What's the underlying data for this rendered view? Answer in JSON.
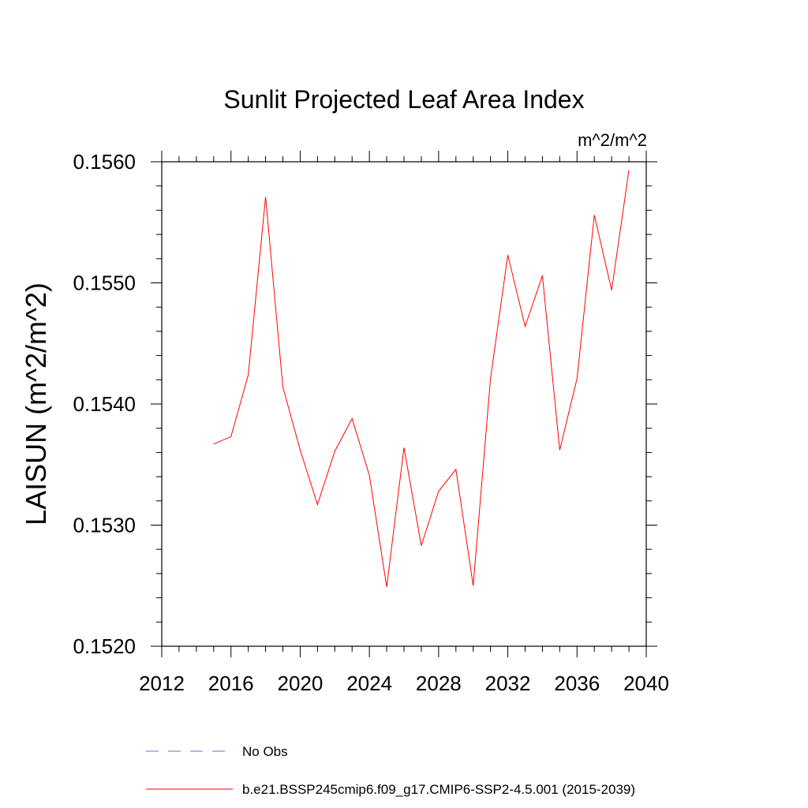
{
  "chart_data": {
    "type": "line",
    "title": "Sunlit Projected Leaf Area Index",
    "units_label": "m^2/m^2",
    "ylabel": "LAISUN  (m^2/m^2)",
    "xlabel": "",
    "xlim": [
      2012,
      2040
    ],
    "ylim": [
      0.152,
      0.156
    ],
    "x_ticks": [
      2012,
      2016,
      2020,
      2024,
      2028,
      2032,
      2036,
      2040
    ],
    "x_tick_labels": [
      "2012",
      "2016",
      "2020",
      "2024",
      "2028",
      "2032",
      "2036",
      "2040"
    ],
    "y_ticks": [
      0.152,
      0.153,
      0.154,
      0.155,
      0.156
    ],
    "y_tick_labels": [
      "0.1520",
      "0.1530",
      "0.1540",
      "0.1550",
      "0.1560"
    ],
    "grid": false,
    "legend_position": "bottom",
    "series": [
      {
        "name": "No Obs",
        "color": "#7b68c8",
        "style": "dashed",
        "x": [],
        "values": []
      },
      {
        "name": "b.e21.BSSP245cmip6.f09_g17.CMIP6-SSP2-4.5.001 (2015-2039)",
        "color": "#ff0000",
        "style": "solid",
        "x": [
          2015,
          2016,
          2017,
          2018,
          2019,
          2020,
          2021,
          2022,
          2023,
          2024,
          2025,
          2026,
          2027,
          2028,
          2029,
          2030,
          2031,
          2032,
          2033,
          2034,
          2035,
          2036,
          2037,
          2038,
          2039
        ],
        "values": [
          0.15367,
          0.15373,
          0.15424,
          0.15571,
          0.15414,
          0.15362,
          0.15317,
          0.15361,
          0.15388,
          0.15341,
          0.15249,
          0.15364,
          0.15283,
          0.15328,
          0.15346,
          0.1525,
          0.15421,
          0.15523,
          0.15464,
          0.15506,
          0.15362,
          0.15421,
          0.15556,
          0.15494,
          0.15593
        ]
      }
    ]
  }
}
